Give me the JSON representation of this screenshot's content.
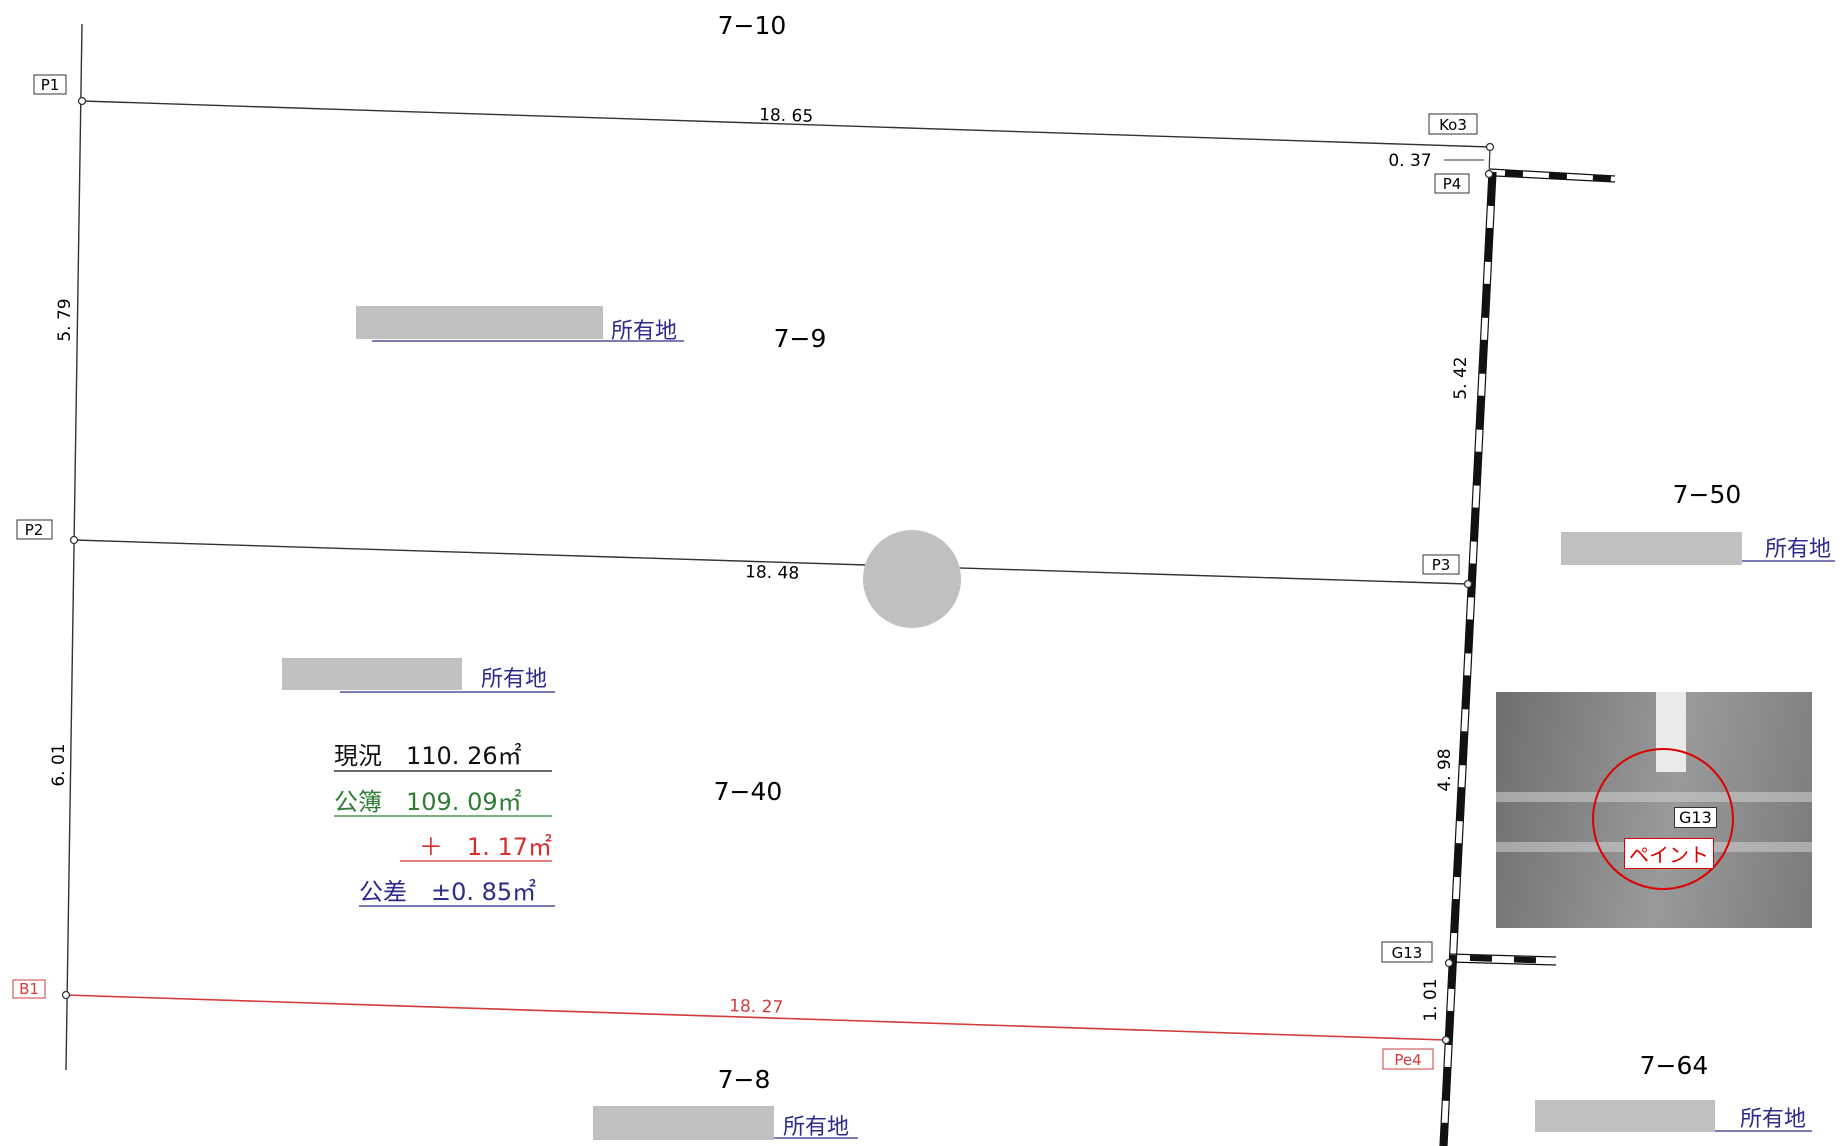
{
  "parcels": {
    "top": "7−10",
    "main_upper": "7−9",
    "main_lower": "7−40",
    "right_upper": "7−50",
    "right_lower": "7−64",
    "bottom": "7−8"
  },
  "owner_suffix": "所有地",
  "points": {
    "p1": "P1",
    "p2": "P2",
    "p3": "P3",
    "p4": "P4",
    "ko3": "Ko3",
    "g13": "G13",
    "b1": "B1",
    "pe4": "Pe4"
  },
  "distances": {
    "p1_ko3": "18. 65",
    "p2_p3": "18. 48",
    "b1_pe4": "18. 27",
    "p1_p2": "5. 79",
    "p2_b1": "6. 01",
    "p4_p3": "5. 42",
    "p3_g13": "4. 98",
    "g13_pe4": "1. 01",
    "ko3_p4": "0. 37"
  },
  "area": {
    "current": "現況　110. 26㎡",
    "registry": "公簿　109. 09㎡",
    "difference": "＋　1. 17㎡",
    "tolerance": "公差　±0. 85㎡"
  },
  "photo": {
    "tag": "G13",
    "paint": "ペイント"
  },
  "colors": {
    "line": "#333333",
    "red_line": "#d23c3c",
    "owner_blue": "#2c2c8c",
    "registry_green": "#2e7d32",
    "difference_red": "#d32f2f",
    "redaction_gray": "#c0c0c0"
  }
}
